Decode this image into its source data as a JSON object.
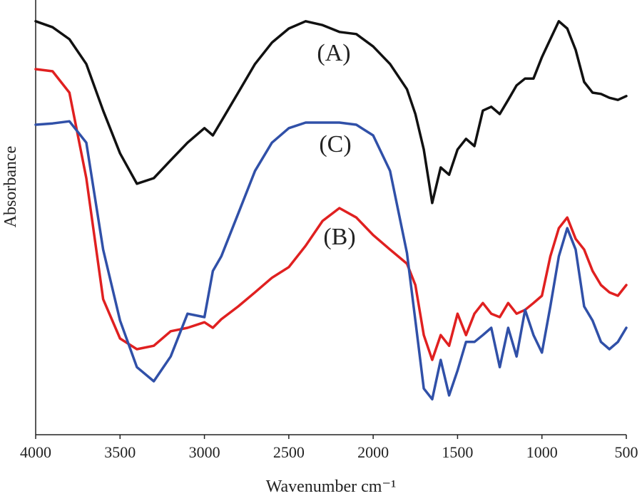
{
  "chart_data": {
    "type": "line",
    "x_label": "Wavenumber cm⁻¹",
    "y_label": "Absorbance",
    "annotations": [
      "(A)",
      "(B)",
      "(C)"
    ],
    "xlim": [
      4000,
      500
    ],
    "xticks": [
      4000,
      3500,
      3000,
      2500,
      2000,
      1500,
      1000,
      500
    ],
    "ylim": [
      0,
      100
    ],
    "x": [
      4000,
      3900,
      3800,
      3700,
      3600,
      3500,
      3400,
      3300,
      3200,
      3100,
      3000,
      2950,
      2900,
      2800,
      2700,
      2600,
      2500,
      2400,
      2300,
      2200,
      2100,
      2000,
      1900,
      1800,
      1750,
      1700,
      1650,
      1600,
      1550,
      1500,
      1450,
      1400,
      1350,
      1300,
      1250,
      1200,
      1150,
      1100,
      1050,
      1000,
      950,
      900,
      850,
      800,
      750,
      700,
      650,
      600,
      550,
      500
    ],
    "series": [
      {
        "color": "#111111",
        "values": [
          96.7,
          95.3,
          92.5,
          86.7,
          75.8,
          65.8,
          58.7,
          60,
          64.2,
          68.3,
          71.7,
          70,
          73.3,
          80,
          86.7,
          91.7,
          95,
          96.7,
          95.8,
          94.2,
          93.7,
          90.8,
          86.7,
          80.8,
          75,
          66.7,
          54.2,
          62.5,
          60.8,
          66.7,
          69.2,
          67.5,
          75.8,
          76.7,
          75,
          78.3,
          81.7,
          83.3,
          83.3,
          88.3,
          92.5,
          96.7,
          95,
          90,
          82.5,
          80,
          79.7,
          78.8,
          78.3,
          79.2
        ]
      },
      {
        "color": "#e02020",
        "values": [
          85.5,
          85,
          80,
          60,
          31.7,
          22.5,
          20,
          20.8,
          24.2,
          25,
          26.3,
          25,
          27,
          30,
          33.3,
          36.7,
          39.2,
          44.2,
          50,
          53,
          50.8,
          46.7,
          43.3,
          40,
          35,
          23.3,
          17.5,
          23.3,
          20.8,
          28.3,
          23.3,
          28.3,
          30.8,
          28.3,
          27.5,
          30.8,
          28.3,
          29.2,
          30.8,
          32.5,
          41.7,
          48.3,
          50.8,
          45.8,
          43.3,
          38.3,
          35,
          33.3,
          32.5,
          35
        ]
      },
      {
        "color": "#3050a8",
        "values": [
          72.5,
          72.8,
          73.3,
          68.3,
          43.3,
          26.7,
          15.8,
          12.5,
          18.3,
          28.3,
          27.5,
          38.3,
          41.7,
          51.7,
          61.7,
          68.3,
          71.7,
          73,
          73,
          73,
          72.5,
          70,
          61.7,
          42.5,
          26.7,
          10.8,
          8.3,
          17.5,
          9.2,
          15,
          21.7,
          21.7,
          23.3,
          25,
          15.8,
          25,
          18.3,
          29.2,
          23.3,
          19.2,
          30,
          41.7,
          48.3,
          43.3,
          30,
          26.7,
          21.7,
          20,
          21.7,
          25
        ]
      }
    ]
  }
}
